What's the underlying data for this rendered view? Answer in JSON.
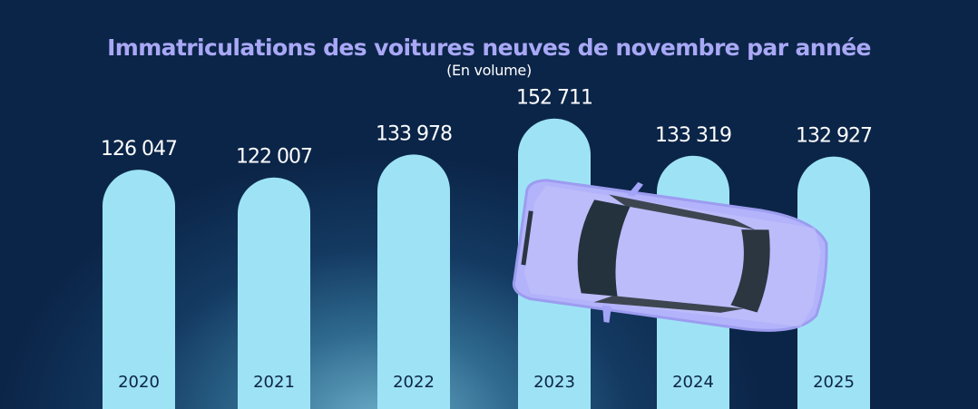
{
  "chart_data": {
    "type": "bar",
    "title": "Immatriculations des voitures neuves de novembre par année",
    "subtitle": "(En volume)",
    "categories": [
      "2020",
      "2021",
      "2022",
      "2023",
      "2024",
      "2025"
    ],
    "values": [
      126047,
      122007,
      133978,
      152711,
      133319,
      132927
    ],
    "value_labels": [
      "126 047",
      "122 007",
      "133 978",
      "152 711",
      "133 319",
      "132 927"
    ],
    "xlabel": "",
    "ylabel": "",
    "grid": false,
    "colors": {
      "bar": "#9ee3f5",
      "title": "#a9a8f6",
      "background": "#0b2548",
      "car": "#b3b3fb"
    }
  }
}
